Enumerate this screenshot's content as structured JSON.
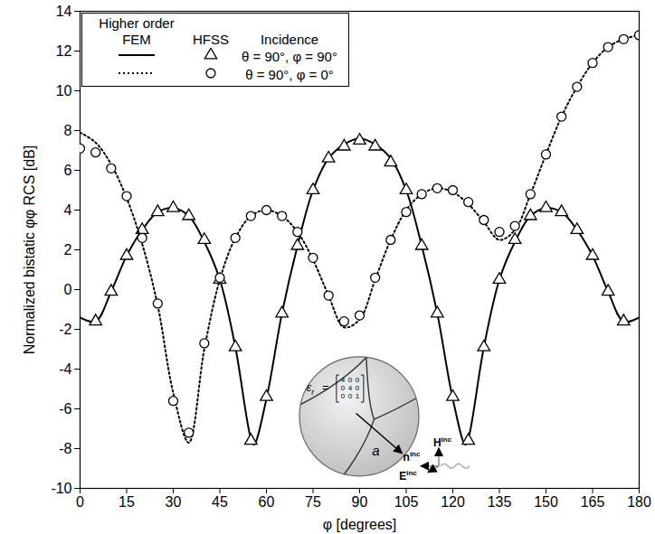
{
  "chart_data": {
    "type": "line",
    "x_label": "φ [degrees]",
    "y_label": "Normalized bistatic φφ RCS [dB]",
    "xlim": [
      0,
      180
    ],
    "xticks": [
      0,
      15,
      30,
      45,
      60,
      75,
      90,
      105,
      120,
      135,
      150,
      165,
      180
    ],
    "ylim": [
      -10,
      14
    ],
    "yticks": [
      -10,
      -8,
      -6,
      -4,
      -2,
      0,
      2,
      4,
      6,
      8,
      10,
      12,
      14
    ],
    "grid": false,
    "legend": "top-left",
    "legend_title": "Incidence",
    "series": [
      {
        "name": "Higher order FEM",
        "incidence": "θ = 90°, φ = 90°",
        "type": "line",
        "line_style": "solid",
        "color": "#000000",
        "x": [
          0,
          5,
          10,
          15,
          20,
          25,
          30,
          35,
          40,
          45,
          50,
          55,
          56,
          60,
          65,
          70,
          75,
          80,
          85,
          90,
          95,
          100,
          105,
          110,
          115,
          120,
          124,
          125,
          130,
          135,
          140,
          145,
          150,
          155,
          160,
          165,
          170,
          175,
          180
        ],
        "values": [
          -1.4,
          -1.6,
          -0.1,
          1.7,
          3.0,
          3.9,
          4.1,
          3.7,
          2.4,
          0.5,
          -2.9,
          -7.5,
          -7.8,
          -5.5,
          -1.2,
          2.2,
          5.0,
          6.6,
          7.3,
          7.6,
          7.3,
          6.6,
          5.0,
          2.2,
          -1.2,
          -5.5,
          -7.8,
          -7.5,
          -2.9,
          0.5,
          2.4,
          3.7,
          4.1,
          3.9,
          3.0,
          1.7,
          -0.1,
          -1.6,
          -1.4
        ]
      },
      {
        "name": "HFSS",
        "incidence": "θ = 90°, φ = 90°",
        "type": "scatter",
        "marker": "triangle",
        "color": "#000000",
        "x": [
          5,
          10,
          15,
          20,
          25,
          30,
          35,
          40,
          45,
          50,
          55,
          60,
          65,
          70,
          75,
          80,
          85,
          90,
          95,
          100,
          105,
          110,
          115,
          120,
          125,
          130,
          135,
          140,
          145,
          150,
          155,
          160,
          165,
          170,
          175
        ],
        "values": [
          -1.6,
          -0.1,
          1.7,
          3.0,
          3.9,
          4.1,
          3.7,
          2.5,
          0.5,
          -2.9,
          -7.6,
          -5.4,
          -1.2,
          2.2,
          5.0,
          6.6,
          7.2,
          7.5,
          7.2,
          6.4,
          5.0,
          2.2,
          -1.2,
          -5.4,
          -7.6,
          -2.9,
          0.5,
          2.5,
          3.7,
          4.1,
          3.9,
          3.0,
          1.7,
          -0.1,
          -1.6
        ]
      },
      {
        "name": "Higher order FEM",
        "incidence": "θ = 90°, φ = 0°",
        "type": "line",
        "line_style": "dotted",
        "color": "#000000",
        "x": [
          0,
          5,
          10,
          15,
          20,
          25,
          30,
          35,
          40,
          45,
          50,
          55,
          60,
          65,
          70,
          75,
          80,
          85,
          90,
          95,
          100,
          105,
          110,
          115,
          120,
          125,
          130,
          135,
          140,
          145,
          150,
          155,
          160,
          165,
          170,
          175,
          180
        ],
        "values": [
          7.9,
          7.4,
          6.3,
          4.6,
          2.3,
          -0.8,
          -5.2,
          -7.7,
          -3.0,
          0.5,
          2.6,
          3.7,
          4.0,
          3.7,
          2.9,
          1.5,
          -0.3,
          -1.9,
          -1.5,
          0.5,
          2.5,
          4.0,
          4.8,
          5.1,
          4.9,
          4.3,
          3.4,
          2.5,
          3.0,
          4.8,
          6.8,
          8.7,
          10.2,
          11.4,
          12.2,
          12.6,
          12.8
        ]
      },
      {
        "name": "HFSS",
        "incidence": "θ = 90°, φ = 0°",
        "type": "scatter",
        "marker": "circle",
        "color": "#000000",
        "x": [
          0,
          5,
          10,
          15,
          20,
          25,
          30,
          35,
          40,
          45,
          50,
          55,
          60,
          65,
          70,
          75,
          80,
          85,
          90,
          95,
          100,
          105,
          110,
          115,
          120,
          125,
          130,
          135,
          140,
          145,
          150,
          155,
          160,
          165,
          170,
          175,
          180
        ],
        "values": [
          7.1,
          6.9,
          6.1,
          4.7,
          2.6,
          -0.7,
          -5.6,
          -7.2,
          -2.7,
          0.6,
          2.6,
          3.7,
          4.0,
          3.7,
          2.9,
          1.6,
          -0.3,
          -1.6,
          -1.3,
          0.6,
          2.5,
          3.9,
          4.8,
          5.1,
          5.0,
          4.4,
          3.5,
          2.9,
          3.2,
          4.8,
          6.8,
          8.7,
          10.2,
          11.4,
          12.2,
          12.6,
          12.8
        ]
      }
    ],
    "inset": {
      "symbol": "ε",
      "subscript": "r",
      "matrix": [
        [
          4,
          0,
          0
        ],
        [
          0,
          4,
          0
        ],
        [
          0,
          0,
          1
        ]
      ],
      "radius_label": "a",
      "vectors": [
        {
          "label": "n",
          "superscript": "inc"
        },
        {
          "label": "H",
          "superscript": "inc"
        },
        {
          "label": "E",
          "superscript": "inc"
        }
      ]
    }
  }
}
